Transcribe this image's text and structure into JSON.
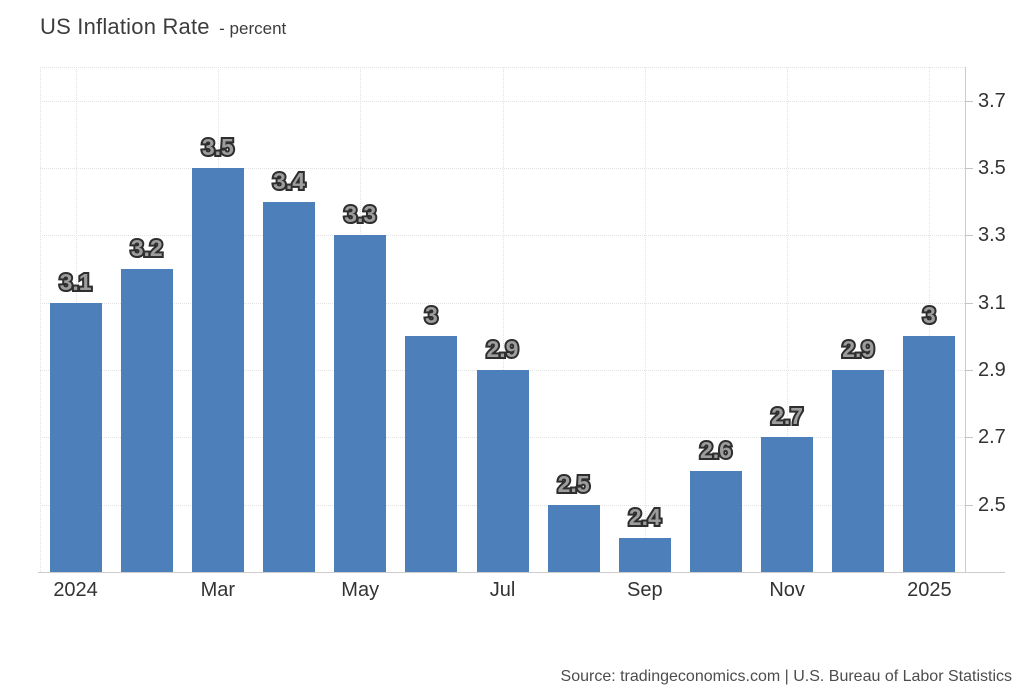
{
  "header": {
    "title": "US Inflation Rate",
    "subtitle": "- percent"
  },
  "footer": {
    "source": "Source: tradingeconomics.com | U.S. Bureau of Labor Statistics"
  },
  "chart_data": {
    "type": "bar",
    "title": "US Inflation Rate",
    "xlabel": "",
    "ylabel": "percent",
    "values": [
      3.1,
      3.2,
      3.5,
      3.4,
      3.3,
      3,
      2.9,
      2.5,
      2.4,
      2.6,
      2.7,
      2.9,
      3
    ],
    "bar_labels": [
      "3.1",
      "3.2",
      "3.5",
      "3.4",
      "3.3",
      "3",
      "2.9",
      "2.5",
      "2.4",
      "2.6",
      "2.7",
      "2.9",
      "3"
    ],
    "x_tick_labels": [
      "2024",
      "Mar",
      "May",
      "Jul",
      "Sep",
      "Nov",
      "2025"
    ],
    "x_tick_indices": [
      0,
      2,
      4,
      6,
      8,
      10,
      12
    ],
    "y_tick_labels": [
      "2.5",
      "2.7",
      "2.9",
      "3.1",
      "3.3",
      "3.5",
      "3.7"
    ],
    "y_tick_values": [
      2.5,
      2.7,
      2.9,
      3.1,
      3.3,
      3.5,
      3.7
    ],
    "ylim": [
      2.3,
      3.8
    ],
    "y_axis_position": "right",
    "grid": "dotted",
    "legend": "none",
    "colors": {
      "bar": "#4d80bb",
      "label_fill": "#9d9d9d",
      "label_outline": "#2e2e2e",
      "grid": "#e2e2e2",
      "axis": "#cccccc",
      "axis_text": "#333333"
    }
  }
}
